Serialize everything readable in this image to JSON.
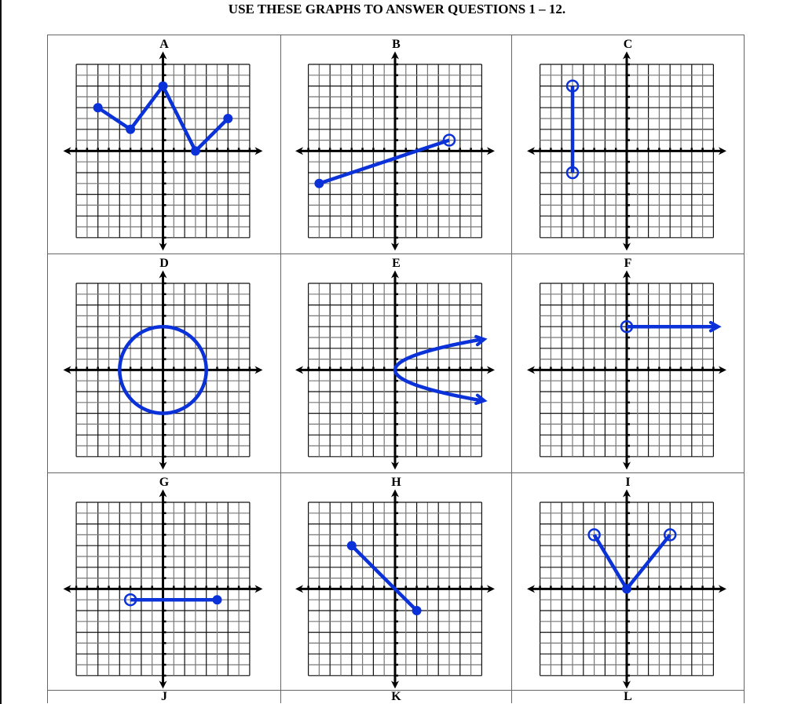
{
  "title": "USE THESE GRAPHS TO ANSWER QUESTIONS 1 – 12.",
  "colors": {
    "curve": "#0b32d8",
    "axis": "#000000",
    "grid": "#555555"
  },
  "grid_range": {
    "x": [
      -8,
      8
    ],
    "y": [
      -8,
      8
    ]
  },
  "graphs": [
    {
      "label": "A",
      "elements": [
        {
          "type": "polyline",
          "points": [
            [
              -6,
              4
            ],
            [
              -3,
              2
            ],
            [
              0,
              6
            ],
            [
              3,
              0
            ],
            [
              6,
              3
            ]
          ],
          "point_style": [
            "closed",
            "closed",
            "closed",
            "closed",
            "closed"
          ]
        }
      ]
    },
    {
      "label": "B",
      "elements": [
        {
          "type": "segment",
          "points": [
            [
              -7,
              -3
            ],
            [
              5,
              1
            ]
          ],
          "point_style": [
            "closed",
            "open"
          ]
        }
      ]
    },
    {
      "label": "C",
      "elements": [
        {
          "type": "segment",
          "points": [
            [
              -5,
              6
            ],
            [
              -5,
              -2
            ]
          ],
          "point_style": [
            "open",
            "open"
          ]
        }
      ]
    },
    {
      "label": "D",
      "elements": [
        {
          "type": "circle",
          "center": [
            0,
            0
          ],
          "radius": 4
        }
      ]
    },
    {
      "label": "E",
      "elements": [
        {
          "type": "sideways-parabola",
          "equation": "x = y^2",
          "y_range": [
            -2.83,
            2.83
          ],
          "arrows": true
        }
      ]
    },
    {
      "label": "F",
      "elements": [
        {
          "type": "ray",
          "start": [
            0,
            4
          ],
          "start_style": "open",
          "direction": "right"
        }
      ]
    },
    {
      "label": "G",
      "elements": [
        {
          "type": "segment",
          "points": [
            [
              -3,
              -1
            ],
            [
              5,
              -1
            ]
          ],
          "point_style": [
            "open",
            "closed"
          ]
        }
      ]
    },
    {
      "label": "H",
      "elements": [
        {
          "type": "segment",
          "points": [
            [
              -4,
              4
            ],
            [
              2,
              -2
            ]
          ],
          "point_style": [
            "closed",
            "closed"
          ]
        }
      ]
    },
    {
      "label": "I",
      "elements": [
        {
          "type": "polyline",
          "points": [
            [
              -3,
              5
            ],
            [
              0,
              0
            ],
            [
              4,
              5
            ]
          ],
          "point_style": [
            "open",
            "closed",
            "open"
          ]
        }
      ]
    },
    {
      "label": "J",
      "elements": []
    },
    {
      "label": "K",
      "elements": []
    },
    {
      "label": "L",
      "elements": []
    }
  ]
}
